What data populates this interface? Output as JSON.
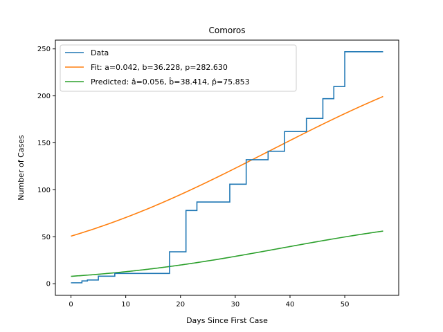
{
  "chart_data": {
    "type": "line",
    "title": "Comoros",
    "xlabel": "Days Since First Case",
    "ylabel": "Number of Cases",
    "xlim": [
      -2.85,
      59.85
    ],
    "ylim": [
      -12.35,
      259.35
    ],
    "x_ticks": [
      0,
      10,
      20,
      30,
      40,
      50
    ],
    "y_ticks": [
      0,
      50,
      100,
      150,
      200,
      250
    ],
    "legend_position": "top-left",
    "grid": false,
    "series": [
      {
        "name": "Data",
        "color": "#1f77b4",
        "style": "step",
        "x": [
          0,
          1,
          2,
          3,
          4,
          5,
          6,
          7,
          8,
          9,
          10,
          11,
          12,
          13,
          14,
          15,
          16,
          17,
          18,
          19,
          20,
          21,
          22,
          23,
          24,
          25,
          26,
          27,
          28,
          29,
          30,
          31,
          32,
          33,
          34,
          35,
          36,
          37,
          38,
          39,
          40,
          41,
          42,
          43,
          44,
          45,
          46,
          47,
          48,
          49,
          50,
          51,
          52,
          53,
          54,
          55,
          56,
          57
        ],
        "y": [
          1,
          1,
          3,
          4,
          4,
          8,
          8,
          8,
          11,
          11,
          11,
          11,
          11,
          11,
          11,
          11,
          11,
          11,
          34,
          34,
          34,
          78,
          78,
          87,
          87,
          87,
          87,
          87,
          87,
          106,
          106,
          106,
          132,
          132,
          132,
          132,
          141,
          141,
          141,
          162,
          162,
          162,
          162,
          176,
          176,
          176,
          197,
          197,
          210,
          210,
          247,
          247,
          247,
          247,
          247,
          247,
          247,
          247
        ]
      },
      {
        "name": "Fit: a=0.042, b=36.228, p=282.630",
        "color": "#ff7f0e",
        "style": "curve",
        "model": {
          "a": 0.042,
          "b": 36.228,
          "p": 282.63
        }
      },
      {
        "name": "Predicted: â=0.056, b̂=38.414, p̂=75.853",
        "color": "#2ca02c",
        "style": "curve",
        "model": {
          "a": 0.056,
          "b": 38.414,
          "p": 75.853
        }
      }
    ]
  }
}
